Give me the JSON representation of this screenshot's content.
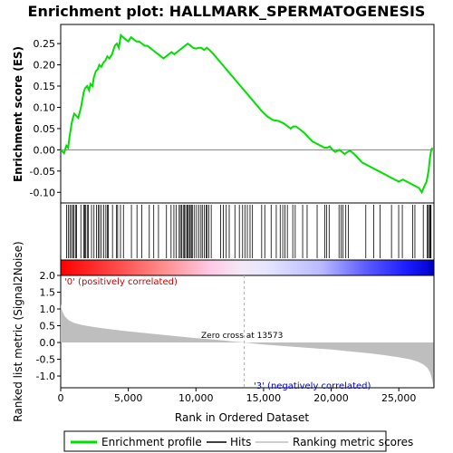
{
  "chart_data": {
    "type": "line",
    "title": "Enrichment plot: HALLMARK_SPERMATOGENESIS",
    "colors": {
      "enrichment_line": "#00e000",
      "hits": "#000000",
      "metric_fill": "#bebebe",
      "positive_heat": "#ff0000",
      "negative_heat": "#0000ff",
      "frame": "#000000",
      "zero_line": "#808080"
    },
    "enrichment_panel": {
      "ylabel": "Enrichment score (ES)",
      "ylim": [
        -0.125,
        0.295
      ],
      "yticks": [
        -0.1,
        -0.05,
        0.0,
        0.05,
        0.1,
        0.15,
        0.2,
        0.25
      ],
      "ytick_labels": [
        "-0.10",
        "-0.05",
        "0.00",
        "0.05",
        "0.10",
        "0.15",
        "0.20",
        "0.25"
      ],
      "x": [
        0,
        250,
        420,
        550,
        650,
        800,
        900,
        1000,
        1150,
        1300,
        1500,
        1700,
        1800,
        1950,
        2100,
        2200,
        2350,
        2450,
        2600,
        2750,
        2850,
        3000,
        3150,
        3300,
        3450,
        3600,
        3800,
        4000,
        4150,
        4300,
        4450,
        4600,
        4800,
        5000,
        5200,
        5400,
        5600,
        5800,
        6000,
        6200,
        6400,
        6600,
        6800,
        7000,
        7200,
        7400,
        7600,
        7800,
        8000,
        8200,
        8400,
        8600,
        8800,
        9000,
        9200,
        9400,
        9600,
        9800,
        10000,
        10200,
        10400,
        10600,
        10800,
        11000,
        11300,
        11700,
        12100,
        12500,
        12900,
        13300,
        13700,
        14100,
        14500,
        14900,
        15300,
        15700,
        16100,
        16500,
        16800,
        17000,
        17200,
        17400,
        17700,
        18000,
        18300,
        18600,
        18900,
        19200,
        19500,
        19700,
        19900,
        20100,
        20300,
        20600,
        20800,
        21000,
        21200,
        21400,
        21700,
        22000,
        22300,
        22600,
        22900,
        23200,
        23500,
        23800,
        24100,
        24400,
        24700,
        25000,
        25300,
        25600,
        25900,
        26200,
        26500,
        26700,
        26900,
        27050,
        27200,
        27300,
        27400,
        27480
      ],
      "y": [
        0.0,
        -0.008,
        0.01,
        0.005,
        0.03,
        0.06,
        0.075,
        0.085,
        0.08,
        0.075,
        0.1,
        0.135,
        0.145,
        0.15,
        0.14,
        0.155,
        0.15,
        0.17,
        0.185,
        0.19,
        0.2,
        0.195,
        0.205,
        0.21,
        0.22,
        0.215,
        0.225,
        0.245,
        0.25,
        0.24,
        0.27,
        0.265,
        0.26,
        0.255,
        0.265,
        0.26,
        0.255,
        0.255,
        0.25,
        0.245,
        0.245,
        0.24,
        0.235,
        0.23,
        0.225,
        0.22,
        0.215,
        0.22,
        0.225,
        0.23,
        0.225,
        0.23,
        0.235,
        0.24,
        0.245,
        0.25,
        0.245,
        0.24,
        0.238,
        0.24,
        0.24,
        0.235,
        0.24,
        0.235,
        0.225,
        0.21,
        0.195,
        0.18,
        0.165,
        0.15,
        0.135,
        0.12,
        0.105,
        0.09,
        0.078,
        0.07,
        0.068,
        0.062,
        0.055,
        0.05,
        0.055,
        0.055,
        0.048,
        0.04,
        0.03,
        0.02,
        0.015,
        0.01,
        0.005,
        0.005,
        0.008,
        0.0,
        -0.005,
        0.0,
        -0.005,
        -0.01,
        -0.005,
        -0.002,
        -0.01,
        -0.02,
        -0.03,
        -0.035,
        -0.04,
        -0.045,
        -0.05,
        -0.055,
        -0.06,
        -0.065,
        -0.07,
        -0.075,
        -0.07,
        -0.075,
        -0.08,
        -0.085,
        -0.09,
        -0.1,
        -0.085,
        -0.075,
        -0.05,
        -0.02,
        0.0,
        0.005
      ],
      "hit_positions": [
        430,
        560,
        680,
        790,
        900,
        990,
        1120,
        1180,
        1490,
        1700,
        1780,
        1830,
        1960,
        2050,
        2280,
        2460,
        2640,
        2780,
        2880,
        3010,
        3180,
        3340,
        3460,
        3520,
        3830,
        4130,
        4210,
        4420,
        4640,
        5230,
        5640,
        5990,
        6550,
        6880,
        7230,
        7820,
        8160,
        8370,
        8530,
        8760,
        8850,
        8940,
        9060,
        9150,
        9240,
        9340,
        9410,
        9520,
        9580,
        9670,
        9760,
        9900,
        10050,
        10220,
        10370,
        10470,
        10620,
        10760,
        10830,
        10950,
        11130,
        11830,
        12020,
        12240,
        12460,
        12880,
        13210,
        13450,
        13620,
        13800,
        14000,
        14180,
        14860,
        15090,
        15560,
        15940,
        16230,
        16420,
        16580,
        16760,
        17160,
        17340,
        17890,
        18220,
        18960,
        19530,
        19670,
        19850,
        20580,
        20740,
        20860,
        21080,
        21270,
        22560,
        23140,
        23620,
        24460,
        24990,
        25260,
        26020,
        26190,
        26810,
        27090,
        27180,
        27270,
        27330,
        27380
      ]
    },
    "rank_panel": {
      "ylabel": "Ranked list metric (Signal2Noise)",
      "xlabel": "Rank in Ordered Dataset",
      "ylim": [
        -1.35,
        2.0
      ],
      "yticks": [
        -1.0,
        -0.5,
        0.0,
        0.5,
        1.0,
        1.5,
        2.0
      ],
      "ytick_labels": [
        "-1.0",
        "-0.5",
        "0.0",
        "0.5",
        "1.0",
        "1.5",
        "2.0"
      ],
      "xlim": [
        0,
        27600
      ],
      "xticks": [
        0,
        5000,
        10000,
        15000,
        20000,
        25000
      ],
      "xtick_labels": [
        "0",
        "5,000",
        "10,000",
        "15,000",
        "20,000",
        "25,000"
      ],
      "metric_x": [
        0,
        100,
        300,
        600,
        1000,
        1500,
        2000,
        3000,
        4000,
        5000,
        6000,
        7000,
        8000,
        9000,
        10000,
        11000,
        12000,
        13000,
        13573,
        14000,
        15000,
        16000,
        17000,
        18000,
        19000,
        20000,
        21000,
        22000,
        23000,
        24000,
        25000,
        25800,
        26400,
        26800,
        27100,
        27300,
        27450,
        27550
      ],
      "metric_y": [
        1.15,
        0.95,
        0.78,
        0.66,
        0.58,
        0.53,
        0.49,
        0.43,
        0.38,
        0.33,
        0.29,
        0.25,
        0.21,
        0.17,
        0.13,
        0.1,
        0.06,
        0.02,
        0.0,
        -0.02,
        -0.06,
        -0.09,
        -0.12,
        -0.15,
        -0.18,
        -0.21,
        -0.25,
        -0.29,
        -0.33,
        -0.38,
        -0.44,
        -0.5,
        -0.57,
        -0.65,
        -0.75,
        -0.88,
        -1.08,
        -1.3
      ],
      "zero_cross_label": "Zero cross at 13573",
      "zero_cross_rank": 13573,
      "pos_label": "'0' (positively correlated)",
      "neg_label": "'3' (negatively correlated)"
    },
    "legend": {
      "placement": "bottom",
      "entries": [
        "Enrichment profile",
        "Hits",
        "Ranking metric scores"
      ]
    }
  }
}
